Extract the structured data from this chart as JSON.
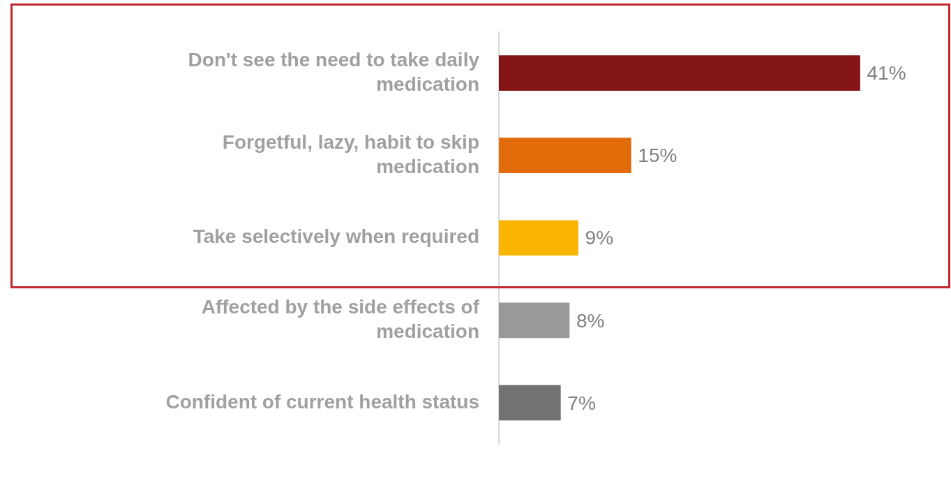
{
  "chart_data": {
    "type": "bar",
    "orientation": "horizontal",
    "categories": [
      "Don't see the need to take daily medication",
      "Forgetful, lazy, habit to skip medication",
      "Take selectively when required",
      "Affected by the side effects of medication",
      "Confident of current health status"
    ],
    "values": [
      41,
      15,
      9,
      8,
      7
    ],
    "colors": [
      "#831517",
      "#e36c0a",
      "#fab500",
      "#999999",
      "#737373"
    ],
    "value_labels": [
      "41%",
      "15%",
      "9%",
      "8%",
      "7%"
    ],
    "legend": false
  }
}
